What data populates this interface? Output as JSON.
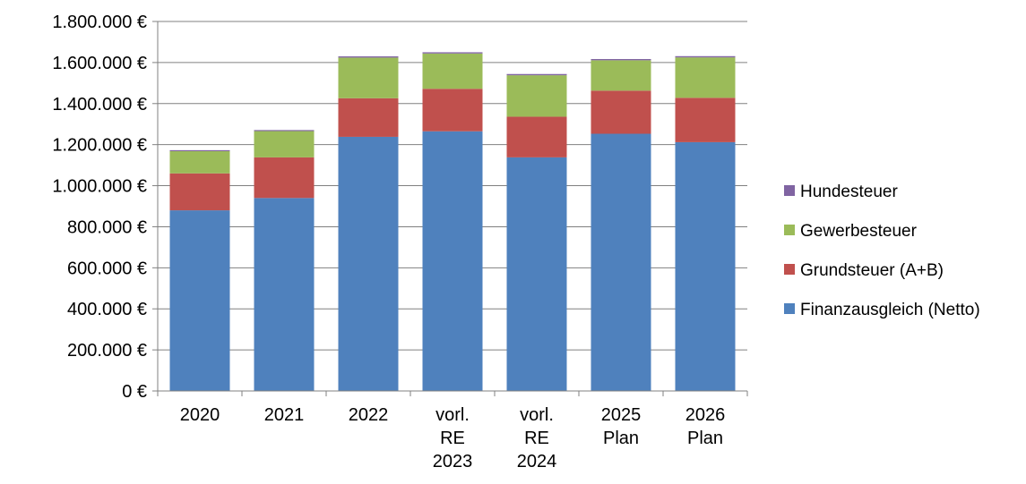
{
  "chart_data": {
    "type": "bar",
    "stacked": true,
    "categories": [
      [
        "2020"
      ],
      [
        "2021"
      ],
      [
        "2022"
      ],
      [
        "vorl.",
        "RE",
        "2023"
      ],
      [
        "vorl.",
        "RE",
        "2024"
      ],
      [
        "2025",
        "Plan"
      ],
      [
        "2026",
        "Plan"
      ]
    ],
    "series": [
      {
        "name": "Finanzausgleich (Netto)",
        "color": "#4F81BD",
        "values": [
          880000,
          940000,
          1238000,
          1265000,
          1138000,
          1253000,
          1212000
        ]
      },
      {
        "name": "Grundsteuer (A+B)",
        "color": "#C0504D",
        "values": [
          180000,
          198000,
          188000,
          207000,
          198000,
          210000,
          216000
        ]
      },
      {
        "name": "Gewerbesteuer",
        "color": "#9BBB59",
        "values": [
          108000,
          128000,
          198000,
          172000,
          202000,
          148000,
          197000
        ]
      },
      {
        "name": "Hundesteuer",
        "color": "#8064A2",
        "values": [
          5000,
          5000,
          6000,
          6000,
          6000,
          6000,
          6000
        ]
      }
    ],
    "ylim": [
      0,
      1800000
    ],
    "ytick_step": 200000,
    "ytick_labels": [
      "0 €",
      "200.000 €",
      "400.000 €",
      "600.000 €",
      "800.000 €",
      "1.000.000 €",
      "1.200.000 €",
      "1.400.000 €",
      "1.600.000 €",
      "1.800.000 €"
    ],
    "grid": "horizontal",
    "legend_position": "right",
    "legend_order": [
      "Hundesteuer",
      "Gewerbesteuer",
      "Grundsteuer (A+B)",
      "Finanzausgleich (Netto)"
    ],
    "gridline_color": "#808080",
    "axis_color": "#808080"
  }
}
